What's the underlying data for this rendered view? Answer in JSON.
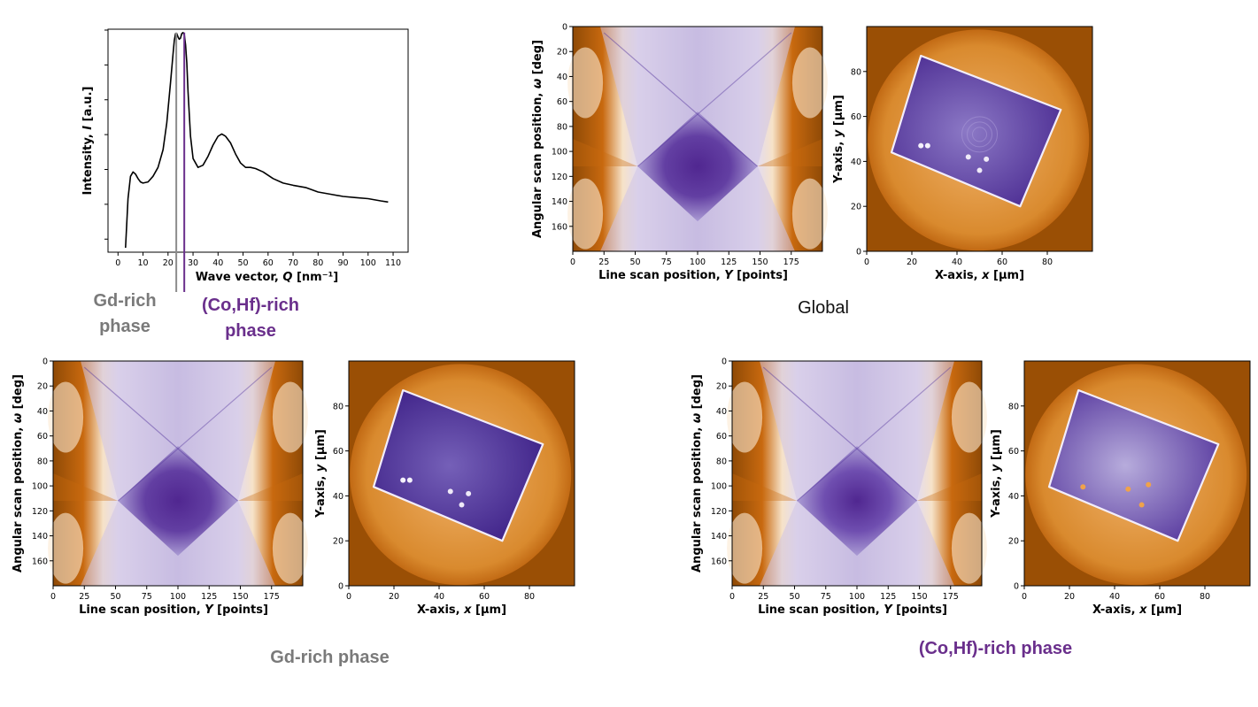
{
  "colors": {
    "gd_marker": "#8c8c8c",
    "cohf_marker": "#6a2f8c",
    "sino_bg": "#c8690f",
    "sino_edge": "#8f4a06",
    "sino_light": "#f6e2c8",
    "sino_purple": "#4a1f8c",
    "recon_bg_dark": "#9a4f05",
    "recon_disc": "#d98a2e",
    "recon_sample": "#5b3a9c"
  },
  "chart_data": [
    {
      "type": "line",
      "id": "xrd-profile",
      "xlabel": "Wave vector, Q [nm⁻¹]",
      "ylabel": "Intensity, I [a.u.]",
      "xlim": [
        -4,
        116
      ],
      "ylim": [
        0,
        1
      ],
      "x_ticks": [
        0,
        10,
        20,
        30,
        40,
        50,
        60,
        70,
        80,
        90,
        100,
        110
      ],
      "y_tick_labels_shown": false,
      "series": [
        {
          "x": [
            3,
            4,
            5,
            6,
            7,
            8,
            9,
            10,
            12,
            14,
            16,
            18,
            19.5,
            21,
            22,
            22.5,
            23,
            23.5,
            24,
            24.5,
            25,
            25.5,
            26,
            26.5,
            27,
            27.5,
            28,
            29,
            30,
            32,
            34,
            36,
            38,
            40,
            41.5,
            43,
            45,
            47,
            49,
            51,
            53,
            55,
            58,
            62,
            66,
            70,
            75,
            80,
            85,
            90,
            95,
            100,
            105,
            108
          ],
          "y": [
            0.02,
            0.24,
            0.34,
            0.36,
            0.35,
            0.33,
            0.315,
            0.31,
            0.315,
            0.34,
            0.38,
            0.46,
            0.58,
            0.76,
            0.89,
            0.95,
            0.98,
            0.98,
            0.965,
            0.955,
            0.96,
            0.98,
            0.985,
            0.975,
            0.93,
            0.85,
            0.72,
            0.52,
            0.42,
            0.38,
            0.39,
            0.43,
            0.48,
            0.52,
            0.53,
            0.52,
            0.49,
            0.44,
            0.4,
            0.38,
            0.38,
            0.375,
            0.36,
            0.33,
            0.31,
            0.3,
            0.29,
            0.27,
            0.26,
            0.25,
            0.245,
            0.24,
            0.23,
            0.225
          ]
        }
      ],
      "markers": [
        {
          "x": 23.3,
          "color": "#8c8c8c"
        },
        {
          "x": 26.5,
          "color": "#6a2f8c"
        }
      ]
    },
    {
      "type": "heatmap",
      "id": "sinogram",
      "xlabel": "Line scan position, Y [points]",
      "ylabel": "Angular scan position, ω [deg]",
      "xlim": [
        0,
        200
      ],
      "ylim_inverted": [
        0,
        180
      ],
      "x_ticks": [
        0,
        25,
        50,
        75,
        100,
        125,
        150,
        175
      ],
      "y_ticks": [
        0,
        20,
        40,
        60,
        80,
        100,
        120,
        140,
        160
      ]
    },
    {
      "type": "heatmap",
      "id": "reconstruction",
      "xlabel": "X-axis, x [μm]",
      "ylabel": "Y-axis, y [μm]",
      "xlim": [
        0,
        100
      ],
      "ylim": [
        0,
        100
      ],
      "x_ticks": [
        0,
        20,
        40,
        60,
        80
      ],
      "y_ticks": [
        0,
        20,
        40,
        60,
        80
      ]
    }
  ],
  "labels": {
    "gd_rich_marker": "Gd-rich phase",
    "gd_rich_line1": "Gd-rich",
    "gd_rich_line2": "phase",
    "cohf_rich_line1": "(Co,Hf)-rich",
    "cohf_rich_line2": "phase",
    "global": "Global",
    "gd_rich_caption": "Gd-rich phase",
    "cohf_rich_caption": "(Co,Hf)-rich phase"
  }
}
